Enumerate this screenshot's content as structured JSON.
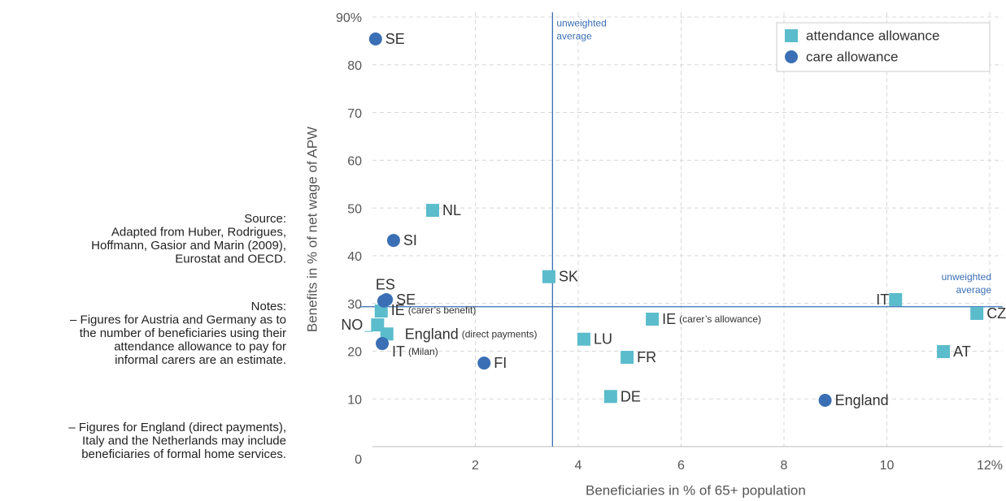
{
  "chart_data": {
    "type": "scatter",
    "x_label": "Beneficiaries in % of 65+ population",
    "y_label": "Benefits in % of net wage of APW",
    "xlim": [
      0,
      12.25
    ],
    "ylim": [
      0,
      91
    ],
    "xticks": [
      2,
      4,
      6,
      8,
      10,
      {
        "value": 12,
        "label": "12%"
      }
    ],
    "yticks": [
      0,
      10,
      20,
      30,
      40,
      50,
      60,
      70,
      80,
      {
        "value": 90,
        "label": "90%"
      }
    ],
    "grid": true,
    "legend": "upper right",
    "series": [
      {
        "name": "attendance allowance",
        "color": "#5bbccc",
        "marker": "square",
        "x": [
          1.17,
          3.43,
          10.17,
          11.75,
          11.1,
          5.44,
          4.95,
          4.11,
          4.63,
          0.17,
          0.1,
          0.28
        ],
        "values": [
          49.5,
          35.6,
          30.8,
          27.9,
          19.9,
          26.7,
          18.7,
          22.5,
          10.5,
          28.4,
          25.5,
          23.6
        ],
        "labels": [
          "NL",
          "SK",
          "IT",
          "CZ",
          "AT",
          "IE",
          "FR",
          "LU",
          "DE",
          "IE",
          "NO",
          "England"
        ],
        "label_details": [
          null,
          null,
          null,
          null,
          null,
          "(carer’s allowance)",
          null,
          null,
          null,
          "(carer’s benefit)",
          null,
          "(direct payments)"
        ]
      },
      {
        "name": "care allowance",
        "color": "#3a6fb5",
        "marker": "circle",
        "x": [
          0.06,
          0.41,
          0.22,
          0.27,
          0.19,
          2.17,
          8.8
        ],
        "values": [
          85.4,
          43.2,
          30.5,
          30.8,
          21.6,
          17.5,
          9.7
        ],
        "labels": [
          "SE",
          "SI",
          "ES",
          "SE",
          "IT",
          "FI",
          "England"
        ],
        "label_details": [
          null,
          null,
          null,
          null,
          "(Milan)",
          null,
          null
        ]
      }
    ],
    "vline": {
      "x": 3.5,
      "label": [
        "unweighted",
        "average"
      ]
    },
    "hline": {
      "y": 29.3,
      "label": [
        "unweighted",
        "average"
      ]
    },
    "source": [
      "Source:",
      "Adapted from Huber, Rodrigues,",
      "Hoffmann, Gasior and Marin (2009),",
      "Eurostat and OECD."
    ],
    "notes": [
      "Notes:",
      "– Figures for Austria and Germany as to",
      "the number of beneficiaries using their",
      "attendance allowance to pay for",
      "informal carers are an estimate."
    ],
    "notes2": [
      "– Figures for England (direct payments),",
      "Italy and the Netherlands may include",
      "beneficiaries of formal home services."
    ]
  }
}
